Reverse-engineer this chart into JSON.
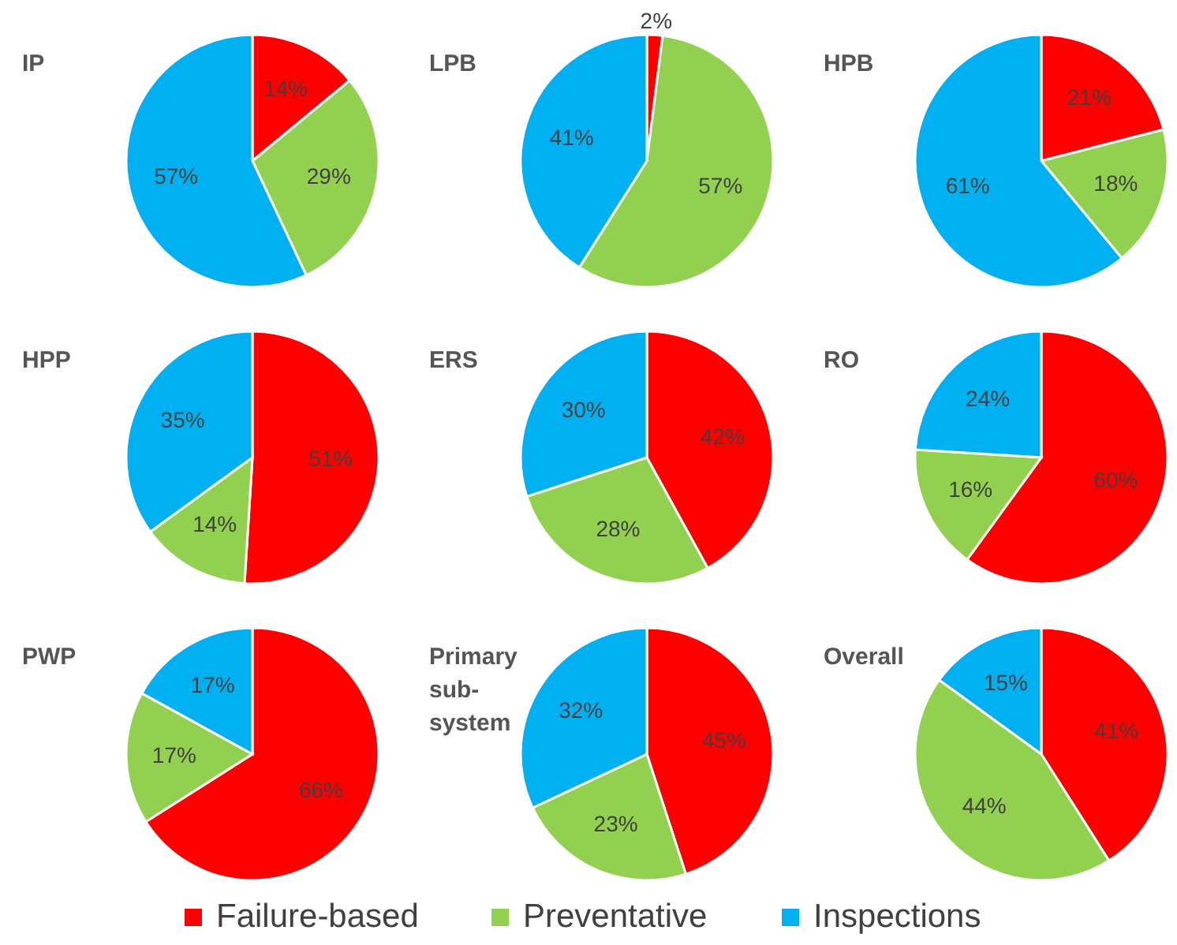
{
  "chart_data": [
    {
      "type": "pie",
      "title": "IP",
      "categories": [
        null,
        null,
        null
      ],
      "values": [
        14,
        29,
        57
      ],
      "value_labels": [
        "14%",
        "29%",
        "57%"
      ],
      "colors": [
        "#ff0000",
        "#92d050",
        "#00b0f0"
      ]
    },
    {
      "type": "pie",
      "title": "LPB",
      "categories": [
        null,
        null,
        null
      ],
      "values": [
        2,
        57,
        41
      ],
      "value_labels": [
        "2%",
        "57%",
        "41%"
      ],
      "colors": [
        "#ff0000",
        "#92d050",
        "#00b0f0"
      ]
    },
    {
      "type": "pie",
      "title": "HPB",
      "categories": [
        null,
        null,
        null
      ],
      "values": [
        21,
        18,
        61
      ],
      "value_labels": [
        "21%",
        "18%",
        "61%"
      ],
      "colors": [
        "#ff0000",
        "#92d050",
        "#00b0f0"
      ]
    },
    {
      "type": "pie",
      "title": "HPP",
      "categories": [
        null,
        null,
        null
      ],
      "values": [
        51,
        14,
        35
      ],
      "value_labels": [
        "51%",
        "14%",
        "35%"
      ],
      "colors": [
        "#ff0000",
        "#92d050",
        "#00b0f0"
      ]
    },
    {
      "type": "pie",
      "title": "ERS",
      "categories": [
        null,
        null,
        null
      ],
      "values": [
        42,
        28,
        30
      ],
      "value_labels": [
        "42%",
        "28%",
        "30%"
      ],
      "colors": [
        "#ff0000",
        "#92d050",
        "#00b0f0"
      ]
    },
    {
      "type": "pie",
      "title": "RO",
      "categories": [
        null,
        null,
        null
      ],
      "values": [
        60,
        16,
        24
      ],
      "value_labels": [
        "60%",
        "16%",
        "24%"
      ],
      "colors": [
        "#ff0000",
        "#92d050",
        "#00b0f0"
      ]
    },
    {
      "type": "pie",
      "title": "PWP",
      "categories": [
        null,
        null,
        null
      ],
      "values": [
        66,
        17,
        17
      ],
      "value_labels": [
        "66%",
        "17%",
        "17%"
      ],
      "colors": [
        "#ff0000",
        "#92d050",
        "#00b0f0"
      ]
    },
    {
      "type": "pie",
      "title": "Primary sub-system",
      "categories": [
        null,
        null,
        null
      ],
      "values": [
        45,
        23,
        32
      ],
      "value_labels": [
        "45%",
        "23%",
        "32%"
      ],
      "colors": [
        "#ff0000",
        "#92d050",
        "#00b0f0"
      ]
    },
    {
      "type": "pie",
      "title": "Overall",
      "categories": [
        "Failure-based",
        "Preventative",
        "Inspections"
      ],
      "values": [
        41,
        44,
        15
      ],
      "value_labels": [
        "41%",
        "44%",
        "15%"
      ],
      "colors": [
        "#ff0000",
        "#92d050",
        "#00b0f0"
      ],
      "legend": "bottom"
    }
  ]
}
